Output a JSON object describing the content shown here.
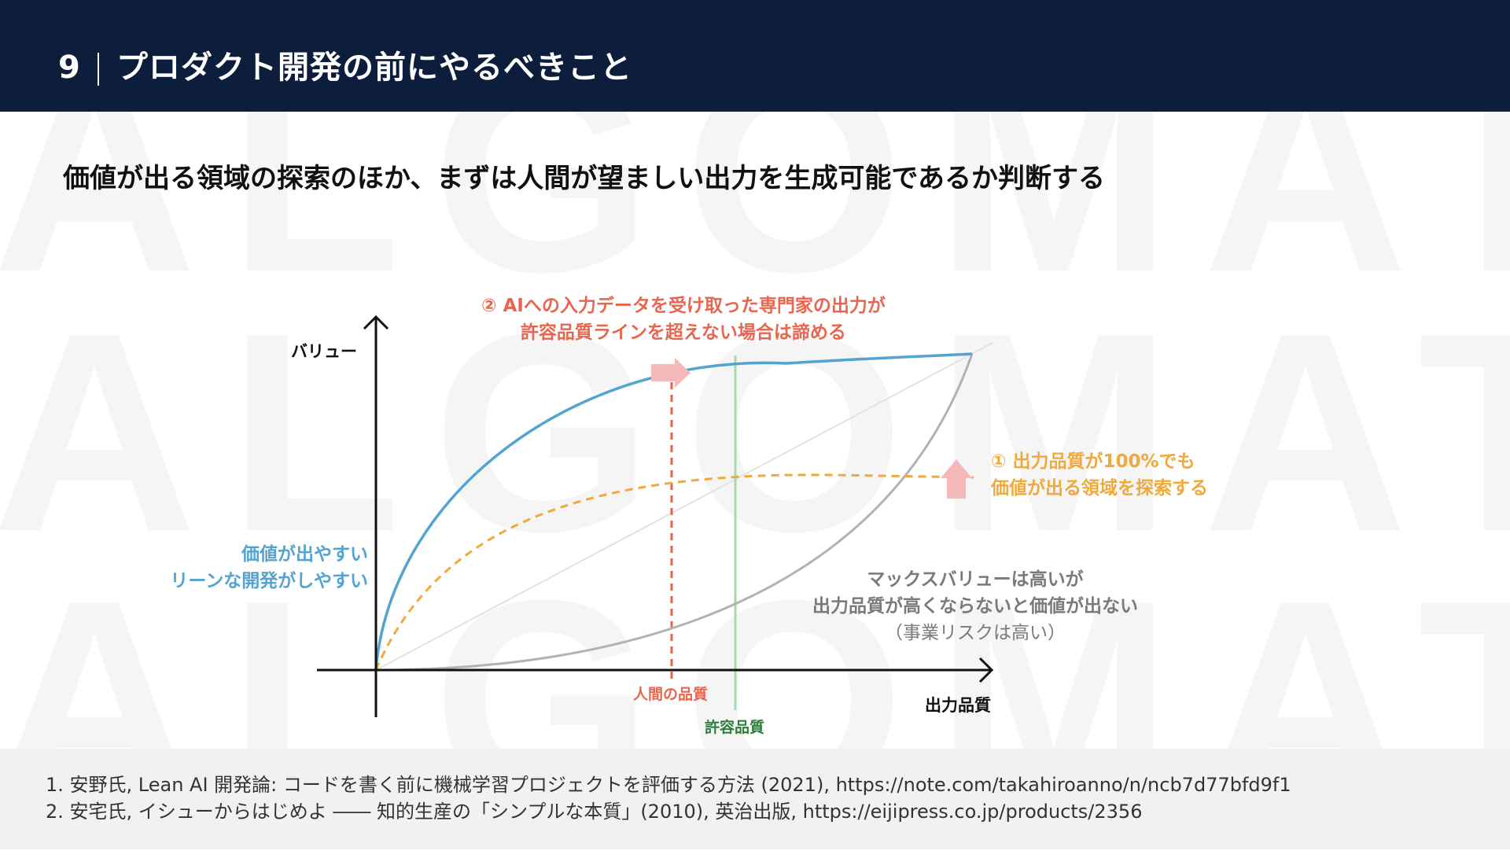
{
  "header": {
    "slide_number": "9",
    "title": "プロダクト開発の前にやるべきこと"
  },
  "watermark": {
    "line1": "ALGOMATIC",
    "line2": "ALGOMATIC",
    "line3": "ALGOMATIC"
  },
  "subtitle": "価値が出る領域の探索のほか、まずは人間が望ましい出力を生成可能であるか判断する",
  "diagram": {
    "y_axis_label": "バリュー",
    "x_axis_label": "出力品質",
    "human_quality_label": "人間の品質",
    "acceptable_quality_label": "許容品質",
    "annotation_2": {
      "line1": "② AIへの入力データを受け取った専門家の出力が",
      "line2": "許容品質ラインを超えない場合は諦める"
    },
    "annotation_1": {
      "line1": "① 出力品質が100%でも",
      "line2": "価値が出る領域を探索する"
    },
    "lean_note": {
      "line1": "価値が出やすい",
      "line2": "リーンな開発がしやすい"
    },
    "max_value_note": {
      "line1": "マックスバリューは高いが",
      "line2": "出力品質が高くならないと価値が出ない",
      "line3": "（事業リスクは高い）"
    },
    "colors": {
      "blue_curve": "#55a3cf",
      "orange_curve": "#f0a93a",
      "gray_curve": "#b2b2b2",
      "human_line": "#e8664f",
      "acceptable_line": "#a6d8b4",
      "arrow": "#f6b9b9"
    }
  },
  "footer": {
    "ref1": "1. 安野氏, Lean AI 開発論: コードを書く前に機械学習プロジェクトを評価する方法 (2021), https://note.com/takahiroanno/n/ncb7d77bfd9f1",
    "ref2": "2. 安宅氏, イシューからはじめよ ―― 知的生産の「シンプルな本質」(2010), 英治出版, https://eijipress.co.jp/products/2356"
  }
}
